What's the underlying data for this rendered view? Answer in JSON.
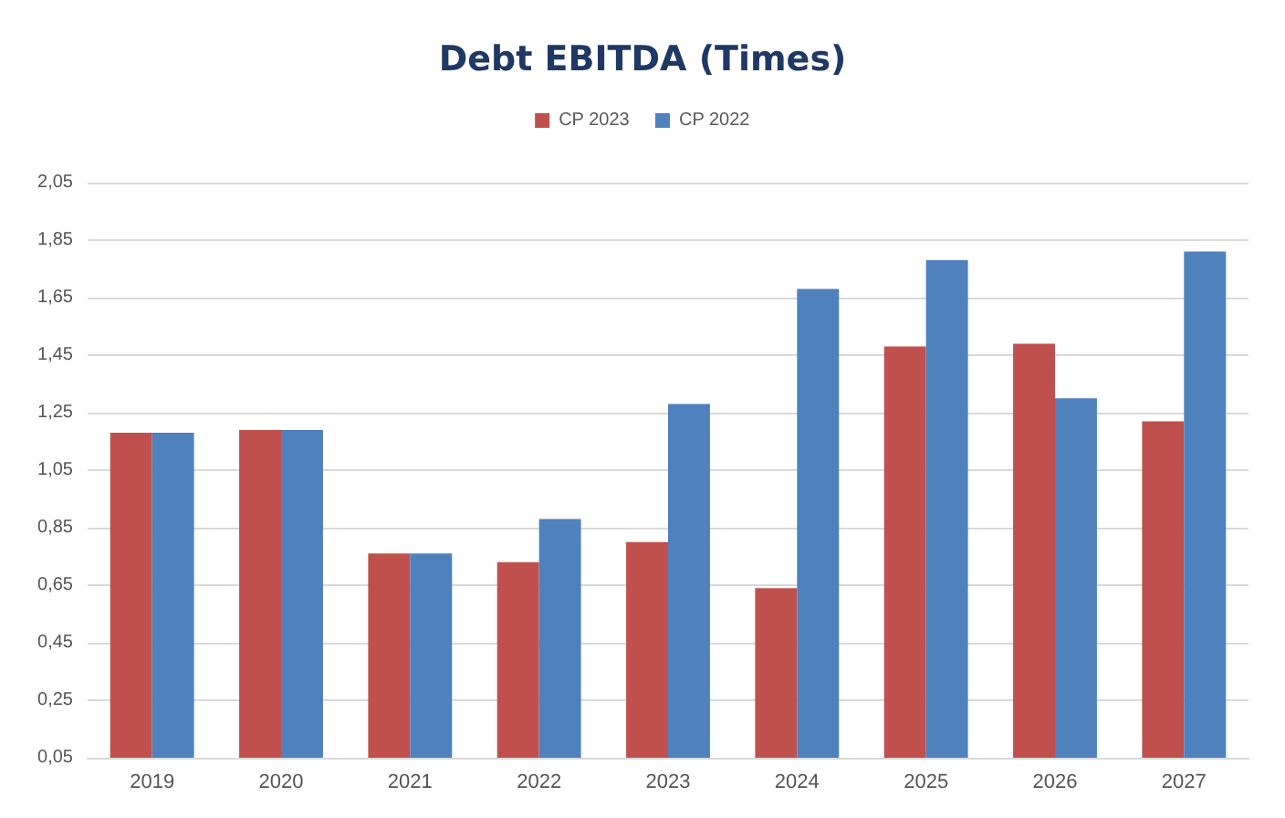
{
  "chart_data": {
    "type": "bar",
    "title": "Debt EBITDA (Times)",
    "categories": [
      "2019",
      "2020",
      "2021",
      "2022",
      "2023",
      "2024",
      "2025",
      "2026",
      "2027"
    ],
    "series": [
      {
        "name": "CP 2023",
        "color": "#c0504d",
        "values": [
          1.18,
          1.19,
          0.76,
          0.73,
          0.8,
          0.64,
          1.48,
          1.49,
          1.22
        ]
      },
      {
        "name": "CP 2022",
        "color": "#4f81bd",
        "values": [
          1.18,
          1.19,
          0.76,
          0.88,
          1.28,
          1.68,
          1.78,
          1.3,
          1.81
        ]
      }
    ],
    "ylim": [
      0.05,
      2.05
    ],
    "yticks": [
      {
        "value": 0.05,
        "label": "0,05"
      },
      {
        "value": 0.25,
        "label": "0,25"
      },
      {
        "value": 0.45,
        "label": "0,45"
      },
      {
        "value": 0.65,
        "label": "0,65"
      },
      {
        "value": 0.85,
        "label": "0,85"
      },
      {
        "value": 1.05,
        "label": "1,05"
      },
      {
        "value": 1.25,
        "label": "1,25"
      },
      {
        "value": 1.45,
        "label": "1,45"
      },
      {
        "value": 1.65,
        "label": "1,65"
      },
      {
        "value": 1.85,
        "label": "1,85"
      },
      {
        "value": 2.05,
        "label": "2,05"
      }
    ],
    "grid": "y",
    "legend": "top"
  }
}
